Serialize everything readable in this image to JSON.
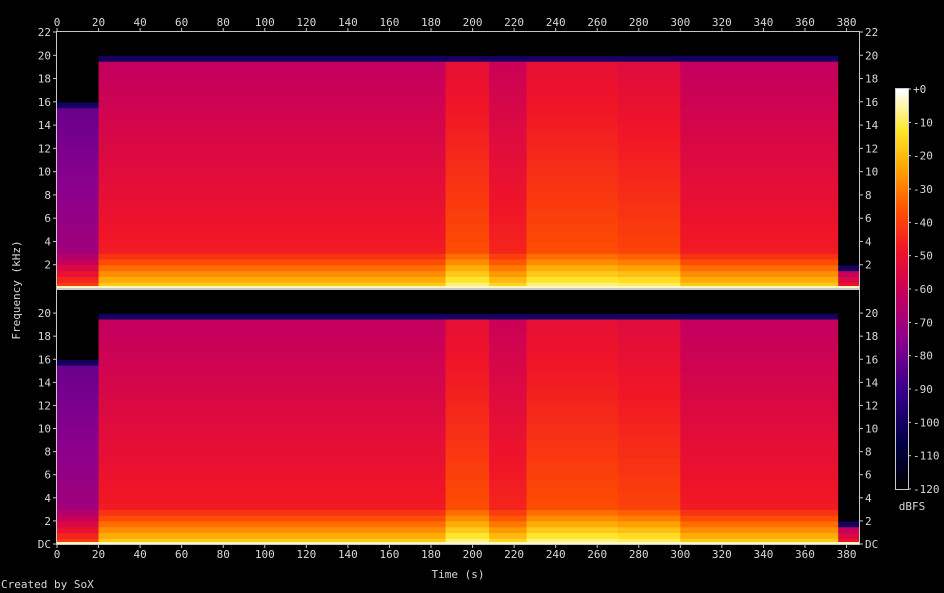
{
  "chart_data": {
    "type": "heatmap",
    "title": "",
    "credit": "Created by SoX",
    "xlabel": "Time (s)",
    "ylabel": "Frequency (kHz)",
    "xlim": [
      0,
      386
    ],
    "ylim": [
      0,
      22
    ],
    "x_ticks": [
      "0",
      "20",
      "40",
      "60",
      "80",
      "100",
      "120",
      "140",
      "160",
      "180",
      "200",
      "220",
      "240",
      "260",
      "280",
      "300",
      "320",
      "340",
      "360",
      "380"
    ],
    "y_ticks_top": [
      "2",
      "4",
      "6",
      "8",
      "10",
      "12",
      "14",
      "16",
      "18",
      "20",
      "22"
    ],
    "y_ticks_bottom": [
      "DC",
      "2",
      "4",
      "6",
      "8",
      "10",
      "12",
      "14",
      "16",
      "18",
      "20"
    ],
    "channels": [
      {
        "name": "channel-1",
        "region": "top"
      },
      {
        "name": "channel-2",
        "region": "bottom"
      }
    ],
    "colorbar": {
      "label": "dBFS",
      "ticks": [
        "+0",
        "-10",
        "-20",
        "-30",
        "-40",
        "-50",
        "-60",
        "-70",
        "-80",
        "-90",
        "-100",
        "-110",
        "-120"
      ],
      "range_dbfs": [
        -120,
        0
      ]
    },
    "segments_s": [
      {
        "start": 0,
        "end": 20,
        "cutoff_khz": 16,
        "level_db": -85
      },
      {
        "start": 20,
        "end": 187,
        "cutoff_khz": 20,
        "level_db": -62
      },
      {
        "start": 187,
        "end": 208,
        "cutoff_khz": 20,
        "level_db": -52
      },
      {
        "start": 208,
        "end": 226,
        "cutoff_khz": 20,
        "level_db": -60
      },
      {
        "start": 226,
        "end": 270,
        "cutoff_khz": 20,
        "level_db": -52
      },
      {
        "start": 270,
        "end": 300,
        "cutoff_khz": 20,
        "level_db": -54
      },
      {
        "start": 300,
        "end": 376,
        "cutoff_khz": 20,
        "level_db": -62
      },
      {
        "start": 376,
        "end": 386,
        "cutoff_khz": 2,
        "level_db": -95
      }
    ]
  }
}
